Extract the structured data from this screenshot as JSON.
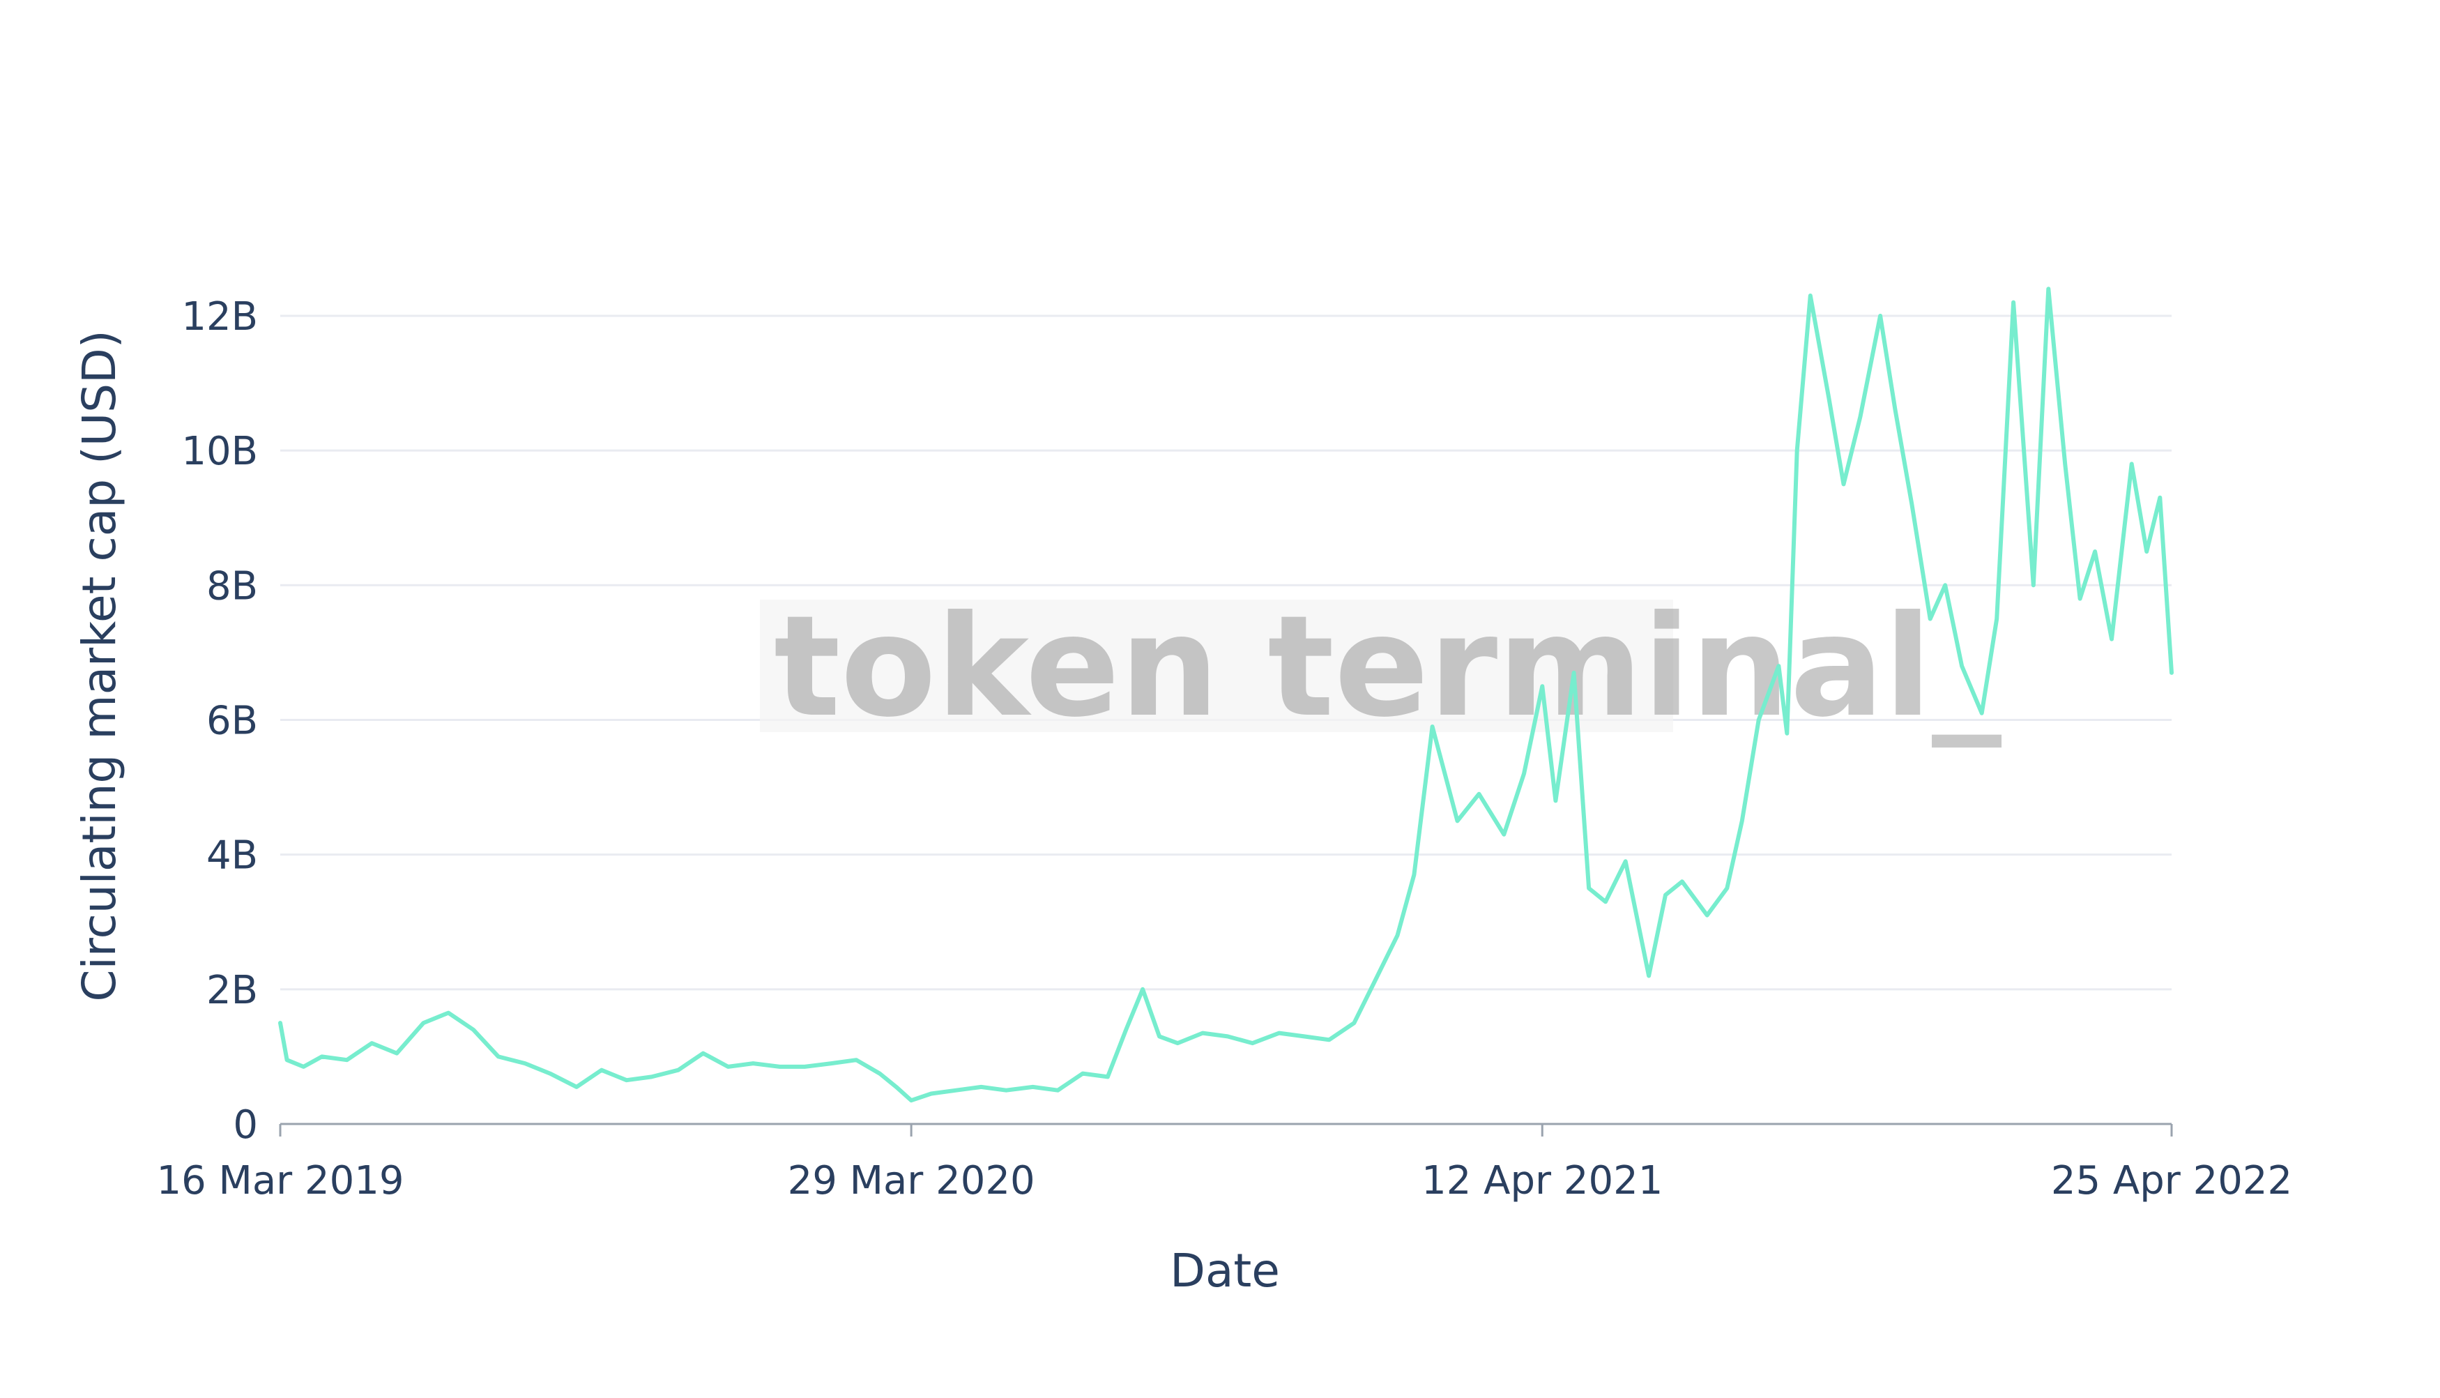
{
  "watermark": "token terminal_",
  "colors": {
    "line": "#77EDCE",
    "grid": "#E9EBF1",
    "axis": "#9AA3AE",
    "text": "#2A3F5F"
  },
  "chart_data": {
    "type": "line",
    "title": "",
    "xlabel": "Date",
    "ylabel": "Circulating market cap (USD)",
    "xlim": [
      "2019-03-16",
      "2022-04-25"
    ],
    "ylim": [
      0,
      12600000000
    ],
    "grid": true,
    "legend": "none",
    "x_ticks": [
      {
        "value": "2019-03-16",
        "label": "16 Mar 2019"
      },
      {
        "value": "2020-03-29",
        "label": "29 Mar 2020"
      },
      {
        "value": "2021-04-12",
        "label": "12 Apr 2021"
      },
      {
        "value": "2022-04-25",
        "label": "25 Apr 2022"
      }
    ],
    "y_ticks": [
      {
        "value": 0,
        "label": "0"
      },
      {
        "value": 2000000000,
        "label": "2B"
      },
      {
        "value": 4000000000,
        "label": "4B"
      },
      {
        "value": 6000000000,
        "label": "6B"
      },
      {
        "value": 8000000000,
        "label": "8B"
      },
      {
        "value": 10000000000,
        "label": "10B"
      },
      {
        "value": 12000000000,
        "label": "12B"
      }
    ],
    "series": [
      {
        "x": [
          "2019-03-16",
          "2019-03-20",
          "2019-03-30",
          "2019-04-10",
          "2019-04-25",
          "2019-05-10",
          "2019-05-25",
          "2019-06-10",
          "2019-06-25",
          "2019-07-10",
          "2019-07-25",
          "2019-08-10",
          "2019-08-25",
          "2019-09-10",
          "2019-09-25",
          "2019-10-10",
          "2019-10-25",
          "2019-11-10",
          "2019-11-25",
          "2019-12-10",
          "2019-12-25",
          "2020-01-10",
          "2020-01-25",
          "2020-02-10",
          "2020-02-25",
          "2020-03-10",
          "2020-03-20",
          "2020-03-29",
          "2020-04-10",
          "2020-04-25",
          "2020-05-10",
          "2020-05-25",
          "2020-06-10",
          "2020-06-25",
          "2020-07-10",
          "2020-07-25",
          "2020-08-05",
          "2020-08-15",
          "2020-08-25",
          "2020-09-05",
          "2020-09-20",
          "2020-10-05",
          "2020-10-20",
          "2020-11-05",
          "2020-11-20",
          "2020-12-05",
          "2020-12-20",
          "2021-01-01",
          "2021-01-15",
          "2021-01-25",
          "2021-02-05",
          "2021-02-20",
          "2021-03-05",
          "2021-03-20",
          "2021-04-01",
          "2021-04-12",
          "2021-04-20",
          "2021-05-01",
          "2021-05-10",
          "2021-05-20",
          "2021-06-01",
          "2021-06-15",
          "2021-06-25",
          "2021-07-05",
          "2021-07-20",
          "2021-08-01",
          "2021-08-10",
          "2021-08-20",
          "2021-09-01",
          "2021-09-06",
          "2021-09-12",
          "2021-09-20",
          "2021-10-01",
          "2021-10-10",
          "2021-10-20",
          "2021-11-01",
          "2021-11-10",
          "2021-11-20",
          "2021-12-01",
          "2021-12-10",
          "2021-12-20",
          "2022-01-01",
          "2022-01-10",
          "2022-01-20",
          "2022-02-01",
          "2022-02-10",
          "2022-02-20",
          "2022-03-01",
          "2022-03-10",
          "2022-03-20",
          "2022-04-01",
          "2022-04-10",
          "2022-04-18",
          "2022-04-25"
        ],
        "y": [
          1500000000,
          950000000,
          850000000,
          1000000000,
          950000000,
          1200000000,
          1050000000,
          1500000000,
          1650000000,
          1400000000,
          1000000000,
          900000000,
          750000000,
          550000000,
          800000000,
          650000000,
          700000000,
          800000000,
          1050000000,
          850000000,
          900000000,
          850000000,
          850000000,
          900000000,
          950000000,
          750000000,
          550000000,
          350000000,
          450000000,
          500000000,
          550000000,
          500000000,
          550000000,
          500000000,
          750000000,
          700000000,
          1400000000,
          2000000000,
          1300000000,
          1200000000,
          1350000000,
          1300000000,
          1200000000,
          1350000000,
          1300000000,
          1250000000,
          1500000000,
          2100000000,
          2800000000,
          3700000000,
          5900000000,
          4500000000,
          4900000000,
          4300000000,
          5200000000,
          6500000000,
          4800000000,
          6700000000,
          3500000000,
          3300000000,
          3900000000,
          2200000000,
          3400000000,
          3600000000,
          3100000000,
          3500000000,
          4500000000,
          6000000000,
          6800000000,
          5800000000,
          10000000000,
          12300000000,
          10800000000,
          9500000000,
          10500000000,
          12000000000,
          10600000000,
          9200000000,
          7500000000,
          8000000000,
          6800000000,
          6100000000,
          7500000000,
          12200000000,
          8000000000,
          12400000000,
          9800000000,
          7800000000,
          8500000000,
          7200000000,
          9800000000,
          8500000000,
          9300000000,
          6700000000
        ]
      }
    ]
  }
}
